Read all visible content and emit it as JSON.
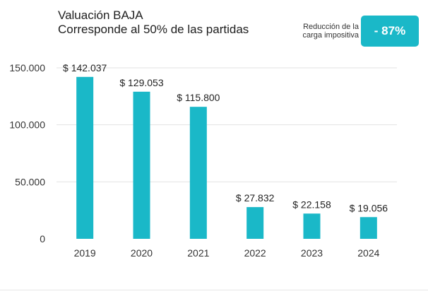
{
  "header": {
    "title": "Valuación BAJA",
    "subtitle": "Corresponde al 50% de las partidas"
  },
  "badge": {
    "caption_line1": "Reducción de la",
    "caption_line2": "carga impositiva",
    "value": "- 87%"
  },
  "colors": {
    "bar": "#1ab8c8",
    "badge": "#1ab8c8",
    "grid": "#e2e2e2",
    "text": "#222222"
  },
  "chart_data": {
    "type": "bar",
    "categories": [
      "2019",
      "2020",
      "2021",
      "2022",
      "2023",
      "2024"
    ],
    "values": [
      142037,
      129053,
      115800,
      27832,
      22158,
      19056
    ],
    "data_labels": [
      "$ 142.037",
      "$ 129.053",
      "$ 115.800",
      "$ 27.832",
      "$ 22.158",
      "$ 19.056"
    ],
    "yticks": [
      0,
      50000,
      100000,
      150000
    ],
    "ytick_labels": [
      "0",
      "50.000",
      "100.000",
      "150.000"
    ],
    "ylim": [
      0,
      150000
    ],
    "grid": true,
    "title": "Valuación BAJA",
    "xlabel": "",
    "ylabel": ""
  }
}
